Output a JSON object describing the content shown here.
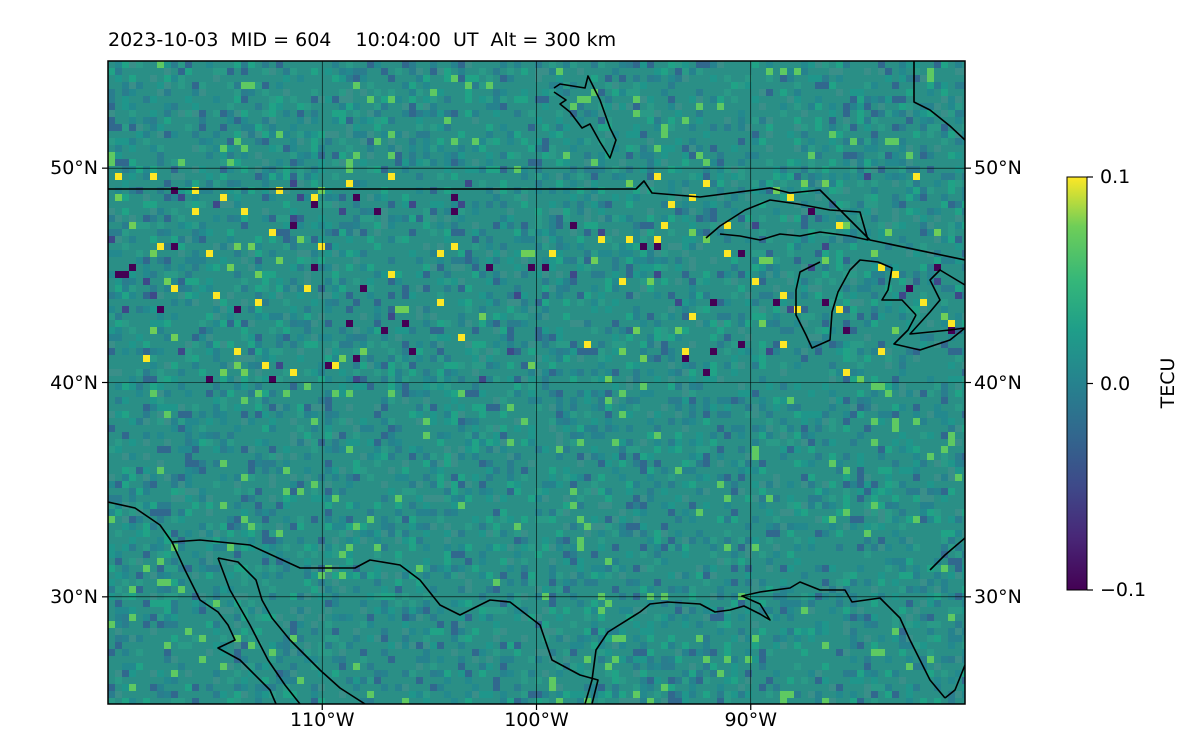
{
  "title": "2023-10-03  MID = 604    10:04:00  UT  Alt = 300 km",
  "map": {
    "lon_range": [
      -120,
      -80
    ],
    "lat_range": [
      25,
      55
    ],
    "lat_ticks": [
      {
        "value": 30,
        "label": "30°N"
      },
      {
        "value": 40,
        "label": "40°N"
      },
      {
        "value": 50,
        "label": "50°N"
      }
    ],
    "lon_ticks": [
      {
        "value": -110,
        "label": "110°W"
      },
      {
        "value": -100,
        "label": "100°W"
      },
      {
        "value": -90,
        "label": "90°W"
      }
    ],
    "gridlines": true,
    "field": "TEC perturbation",
    "colormap": "viridis"
  },
  "colorbar": {
    "label": "TECU",
    "min": -0.1,
    "max": 0.1,
    "ticks": [
      {
        "value": 0.1,
        "label": "0.1"
      },
      {
        "value": 0.0,
        "label": "0.0"
      },
      {
        "value": -0.1,
        "label": "−0.1"
      }
    ],
    "colors": [
      "#440154",
      "#3b528b",
      "#21918c",
      "#5ec962",
      "#fde725"
    ]
  }
}
